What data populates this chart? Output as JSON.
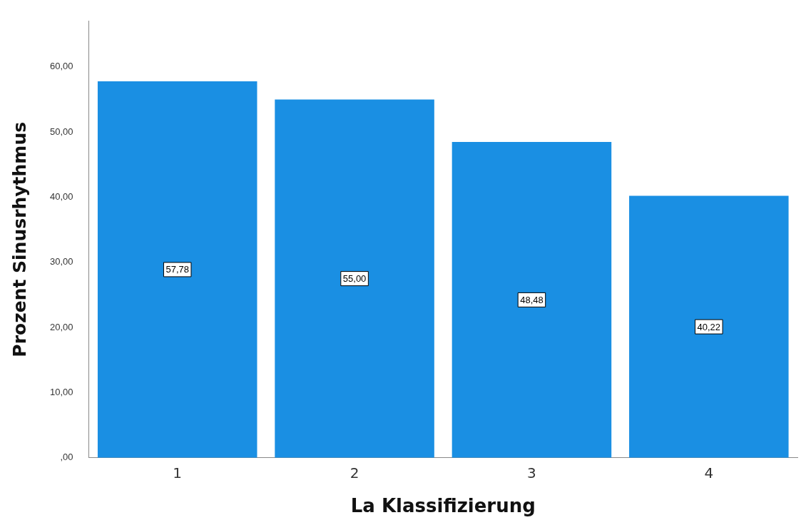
{
  "chart_data": {
    "type": "bar",
    "xlabel": "La Klassifizierung",
    "ylabel": "Prozent Sinusrhythmus",
    "categories": [
      "1",
      "2",
      "3",
      "4"
    ],
    "values": [
      57.78,
      55.0,
      48.48,
      40.22
    ],
    "value_labels": [
      "57,78",
      "55,00",
      "48,48",
      "40,22"
    ],
    "color": "#1a8fe3",
    "ylim": [
      0,
      67
    ],
    "yticks": [
      {
        "value": 0,
        "label": ",00"
      },
      {
        "value": 10,
        "label": "10,00"
      },
      {
        "value": 20,
        "label": "20,00"
      },
      {
        "value": 30,
        "label": "30,00"
      },
      {
        "value": 40,
        "label": "40,00"
      },
      {
        "value": 50,
        "label": "50,00"
      },
      {
        "value": 60,
        "label": "60,00"
      }
    ],
    "grid": false,
    "legend": false
  }
}
